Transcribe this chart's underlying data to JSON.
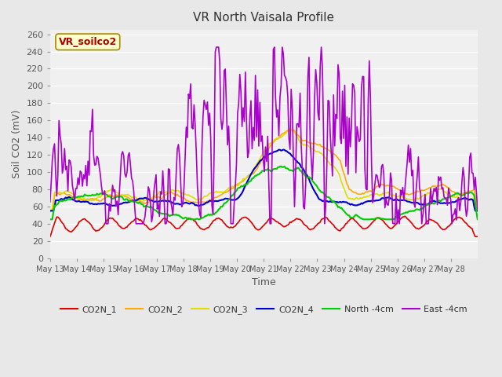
{
  "title": "VR North Vaisala Profile",
  "xlabel": "Time",
  "ylabel": "Soil CO2 (mV)",
  "annotation": "VR_soilco2",
  "ylim": [
    0,
    265
  ],
  "yticks": [
    0,
    20,
    40,
    60,
    80,
    100,
    120,
    140,
    160,
    180,
    200,
    220,
    240,
    260
  ],
  "bg_color": "#e8e8e8",
  "plot_bg_color": "#f0f0f0",
  "series": {
    "CO2N_1": {
      "color": "#dd0000",
      "lw": 1.2
    },
    "CO2N_2": {
      "color": "#ffaa00",
      "lw": 1.2
    },
    "CO2N_3": {
      "color": "#dddd00",
      "lw": 1.2
    },
    "CO2N_4": {
      "color": "#0000cc",
      "lw": 1.5
    },
    "North -4cm": {
      "color": "#00cc00",
      "lw": 1.5
    },
    "East -4cm": {
      "color": "#aa00cc",
      "lw": 1.2
    }
  },
  "xtick_labels": [
    "May 13",
    "May 14",
    "May 15",
    "May 16",
    "May 17",
    "May 18",
    "May 19",
    "May 20",
    "May 21",
    "May 22",
    "May 23",
    "May 24",
    "May 25",
    "May 26",
    "May 27",
    "May 28"
  ],
  "num_days": 16,
  "start_day": 13
}
